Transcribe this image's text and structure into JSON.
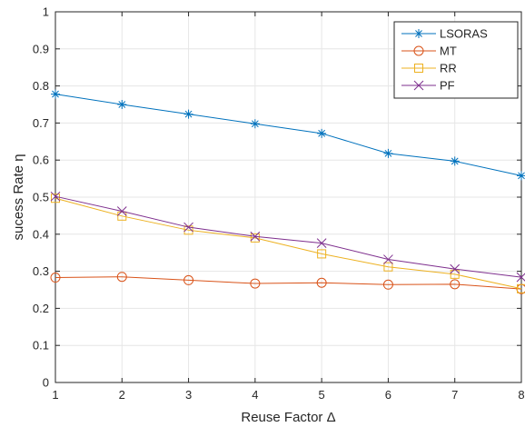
{
  "chart_data": {
    "type": "line",
    "title": "",
    "xlabel": "Reuse Factor Δ",
    "ylabel": "sucess Rate η",
    "x": [
      1,
      2,
      3,
      4,
      5,
      6,
      7,
      8
    ],
    "xlim": [
      1,
      8
    ],
    "ylim": [
      0,
      1
    ],
    "xticks": [
      1,
      2,
      3,
      4,
      5,
      6,
      7,
      8
    ],
    "yticks": [
      0,
      0.1,
      0.2,
      0.3,
      0.4,
      0.5,
      0.6,
      0.7,
      0.8,
      0.9,
      1
    ],
    "xtick_labels": [
      "1",
      "2",
      "3",
      "4",
      "5",
      "6",
      "7",
      "8"
    ],
    "ytick_labels": [
      "0",
      "0.1",
      "0.2",
      "0.3",
      "0.4",
      "0.5",
      "0.6",
      "0.7",
      "0.8",
      "0.9",
      "1"
    ],
    "grid": true,
    "legend_position": "top-right",
    "series": [
      {
        "name": "LSORAS",
        "color": "#0072BD",
        "marker": "asterisk",
        "values": [
          0.778,
          0.75,
          0.724,
          0.698,
          0.672,
          0.618,
          0.597,
          0.558
        ]
      },
      {
        "name": "MT",
        "color": "#D95319",
        "marker": "circle",
        "values": [
          0.283,
          0.285,
          0.276,
          0.267,
          0.269,
          0.264,
          0.265,
          0.252
        ]
      },
      {
        "name": "RR",
        "color": "#EDB120",
        "marker": "square",
        "values": [
          0.497,
          0.449,
          0.411,
          0.39,
          0.347,
          0.312,
          0.292,
          0.253
        ]
      },
      {
        "name": "PF",
        "color": "#7E2F8E",
        "marker": "cross",
        "values": [
          0.502,
          0.462,
          0.419,
          0.394,
          0.376,
          0.332,
          0.306,
          0.284
        ]
      }
    ]
  }
}
